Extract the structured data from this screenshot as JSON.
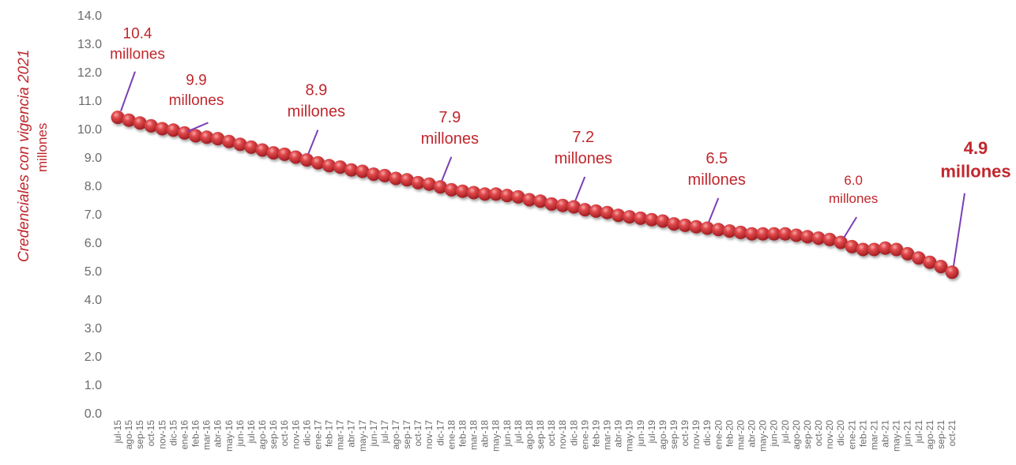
{
  "chart_data": {
    "type": "line",
    "ylabel": "Credenciales con vigencia 2021",
    "ylabel_unit": "millones",
    "ylim": [
      0,
      14
    ],
    "yticks": [
      "0.0",
      "1.0",
      "2.0",
      "3.0",
      "4.0",
      "5.0",
      "6.0",
      "7.0",
      "8.0",
      "9.0",
      "10.0",
      "11.0",
      "12.0",
      "13.0",
      "14.0"
    ],
    "grid": false,
    "categories": [
      "jul-15",
      "ago-15",
      "sep-15",
      "oct-15",
      "nov-15",
      "dic-15",
      "ene-16",
      "feb-16",
      "mar-16",
      "abr-16",
      "may-16",
      "jun-16",
      "jul-16",
      "ago-16",
      "sep-16",
      "oct-16",
      "nov-16",
      "dic-16",
      "ene-17",
      "feb-17",
      "mar-17",
      "abr-17",
      "may-17",
      "jun-17",
      "jul-17",
      "ago-17",
      "sep-17",
      "oct-17",
      "nov-17",
      "dic-17",
      "ene-18",
      "feb-18",
      "mar-18",
      "abr-18",
      "may-18",
      "jun-18",
      "jul-18",
      "ago-18",
      "sep-18",
      "oct-18",
      "nov-18",
      "dic-18",
      "ene-19",
      "feb-19",
      "mar-19",
      "abr-19",
      "may-19",
      "jun-19",
      "jul-19",
      "ago-19",
      "sep-19",
      "oct-19",
      "nov-19",
      "dic-19",
      "ene-20",
      "feb-20",
      "mar-20",
      "abr-20",
      "may-20",
      "jun-20",
      "jul-20",
      "ago-20",
      "sep-20",
      "oct-20",
      "nov-20",
      "dic-20",
      "ene-21",
      "feb-21",
      "mar-21",
      "abr-21",
      "may-21",
      "jun-21",
      "jul-21",
      "ago-21",
      "sep-21",
      "oct-21"
    ],
    "series": [
      {
        "name": "",
        "values": [
          10.4,
          10.3,
          10.2,
          10.1,
          10.0,
          9.95,
          9.85,
          9.75,
          9.7,
          9.65,
          9.55,
          9.45,
          9.35,
          9.25,
          9.15,
          9.1,
          9.0,
          8.9,
          8.8,
          8.7,
          8.65,
          8.55,
          8.5,
          8.4,
          8.35,
          8.25,
          8.2,
          8.1,
          8.05,
          7.95,
          7.85,
          7.8,
          7.75,
          7.7,
          7.7,
          7.65,
          7.6,
          7.5,
          7.45,
          7.35,
          7.3,
          7.25,
          7.15,
          7.1,
          7.05,
          6.95,
          6.9,
          6.85,
          6.8,
          6.75,
          6.65,
          6.6,
          6.55,
          6.5,
          6.45,
          6.4,
          6.35,
          6.3,
          6.3,
          6.3,
          6.3,
          6.25,
          6.2,
          6.15,
          6.1,
          6.0,
          5.85,
          5.75,
          5.75,
          5.8,
          5.75,
          5.6,
          5.45,
          5.3,
          5.15,
          4.95
        ]
      }
    ],
    "colors": {
      "marker": "#c8282d",
      "text": "#c0272d",
      "callout_line": "#7b3fb5",
      "axis_text": "#6b6b6b"
    },
    "annotations": [
      {
        "index": 0,
        "value": "10.4",
        "unit": "millones"
      },
      {
        "index": 6,
        "value": "9.9",
        "unit": "millones"
      },
      {
        "index": 17,
        "value": "8.9",
        "unit": "millones"
      },
      {
        "index": 29,
        "value": "7.9",
        "unit": "millones"
      },
      {
        "index": 41,
        "value": "7.2",
        "unit": "millones"
      },
      {
        "index": 53,
        "value": "6.5",
        "unit": "millones"
      },
      {
        "index": 65,
        "value": "6.0",
        "unit": "millones"
      },
      {
        "index": 75,
        "value": "4.9",
        "unit": "millones",
        "emphasis": true
      }
    ]
  }
}
